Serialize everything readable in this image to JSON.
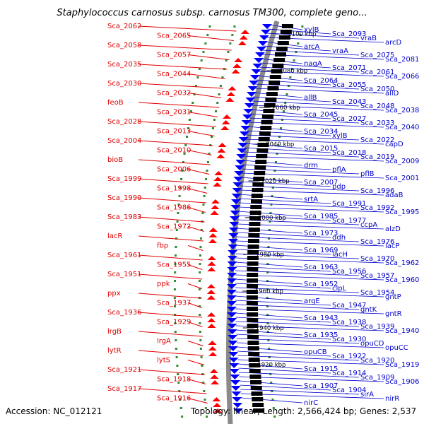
{
  "title": "Staphylococcus carnosus subsp. carnosus TM300, complete geno...",
  "footer": {
    "accession": "Accession: NC_012121",
    "summary": "Topology: linear; Length: 2,566,424 bp; Genes: 2,537"
  },
  "colors": {
    "forward_label": "#e00000",
    "reverse_label": "#0000cc",
    "backbone": "#8a8a8a",
    "tick": "#2e8b2e"
  },
  "kbp_ticks": [
    "2100 kbp",
    "2080 kbp",
    "2060 kbp",
    "2040 kbp",
    "2020 kbp",
    "2000 kbp",
    "1980 kbp",
    "1960 kbp",
    "1940 kbp",
    "1920 kbp"
  ],
  "left_labels": [
    "Sca_2062",
    "Sca_2065",
    "Sca_2058",
    "Sca_2057",
    "Sca_2035",
    "Sca_2044",
    "Sca_2030",
    "Sca_2032",
    "feoB",
    "Sca_2031",
    "Sca_2028",
    "Sca_2013",
    "Sca_2004",
    "Sca_2010",
    "bioB",
    "Sca_2006",
    "Sca_1999",
    "Sca_1998",
    "Sca_1990",
    "Sca_1986",
    "Sca_1983",
    "Sca_1972",
    "lacR",
    "fbp",
    "Sca_1961",
    "Sca_1955",
    "Sca_1951",
    "ppk",
    "ppx",
    "Sca_1937",
    "Sca_1936",
    "Sca_1929",
    "lrgB",
    "lrgA",
    "lytR",
    "lytS",
    "Sca_1921",
    "Sca_1918",
    "Sca_1917",
    "Sca_1916"
  ],
  "right_labels": [
    "xylB",
    "Sca_2093",
    "vraB",
    "arcD",
    "arcA",
    "vraA",
    "Sca_2075",
    "Sca_2081",
    "nagA",
    "Sca_2071",
    "Sca_2061",
    "Sca_2066",
    "Sca_2064",
    "Sca_2055",
    "Sca_2050",
    "allD",
    "allB",
    "Sca_2043",
    "Sca_2048",
    "Sca_2038",
    "Sca_2045",
    "Sca_2027",
    "Sca_2033",
    "Sca_2040",
    "Sca_2034",
    "xylB",
    "Sca_2022",
    "capD",
    "Sca_2015",
    "Sca_2018",
    "Sca_2019",
    "Sca_2009",
    "drm",
    "pflA",
    "pflB",
    "Sca_2001",
    "Sca_2007",
    "pdp",
    "Sca_1996",
    "adaB",
    "srtA",
    "Sca_1991",
    "Sca_1992",
    "Sca_1995",
    "Sca_1985",
    "Sca_1977",
    "ccpA",
    "alzD",
    "Sca_1973",
    "ddh",
    "Sca_1976",
    "lacP",
    "Sca_1969",
    "lacH",
    "Sca_1970",
    "Sca_1962",
    "Sca_1963",
    "Sca_1956",
    "Sca_1957",
    "Sca_1960",
    "Sca_1952",
    "clpL",
    "Sca_1954",
    "gntP",
    "argE",
    "Sca_1947",
    "gntK",
    "gntR",
    "Sca_1943",
    "Sca_1938",
    "Sca_1939",
    "Sca_1940",
    "Sca_1935",
    "Sca_1930",
    "opuCD",
    "opuCC",
    "opuCB",
    "Sca_1922",
    "Sca_1920",
    "Sca_1919",
    "Sca_1915",
    "Sca_1914",
    "Sca_1909",
    "Sca_1906",
    "Sca_1907",
    "Sca_1904",
    "sirA",
    "nirR",
    "nirC"
  ]
}
